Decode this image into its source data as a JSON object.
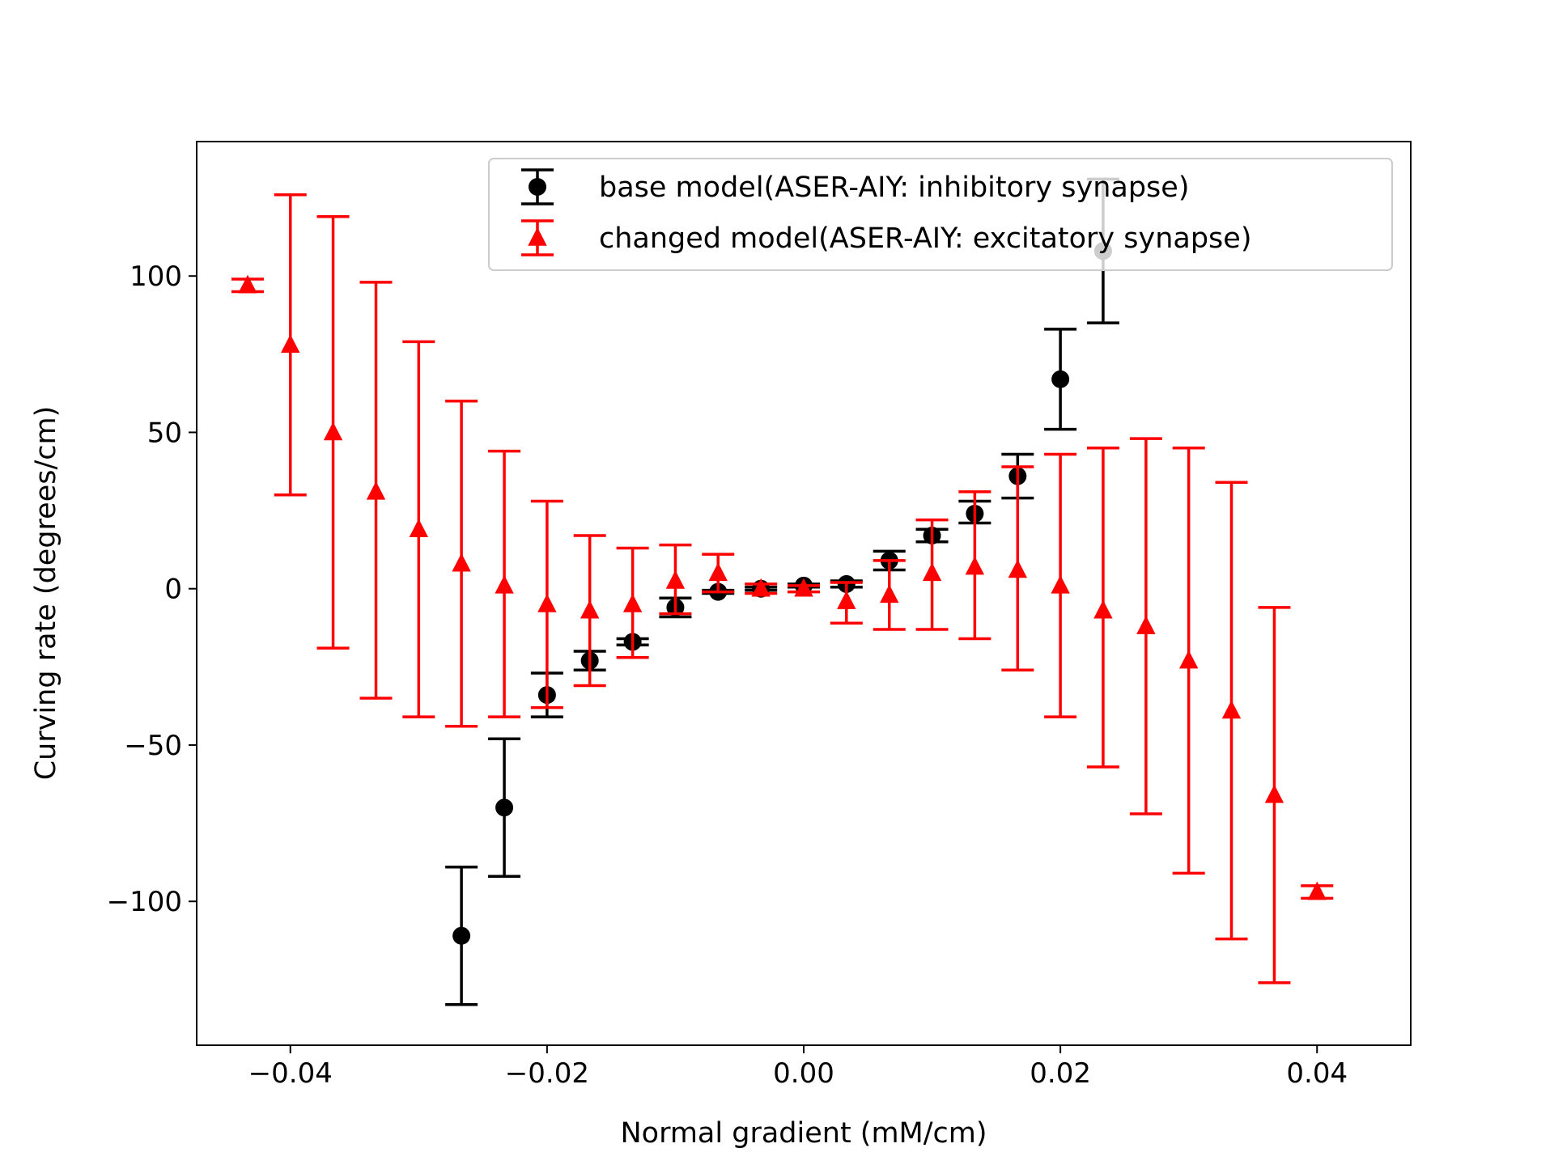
{
  "chart_data": {
    "type": "scatter",
    "errorbars": true,
    "xlabel": "Normal gradient (mM/cm)",
    "ylabel": "Curving rate (degrees/cm)",
    "xlim": [
      -0.0473,
      0.0473
    ],
    "ylim": [
      -146,
      143
    ],
    "x_ticks": [
      -0.04,
      -0.02,
      0.0,
      0.02,
      0.04
    ],
    "x_tick_labels": [
      "−0.04",
      "−0.02",
      "0.00",
      "0.02",
      "0.04"
    ],
    "y_ticks": [
      -100,
      -50,
      0,
      50,
      100
    ],
    "y_tick_labels": [
      "−100",
      "−50",
      "0",
      "50",
      "100"
    ],
    "grid": false,
    "legend_position": "top-right",
    "series": [
      {
        "name": "base model(ASER-AIY: inhibitory synapse)",
        "color": "#000000",
        "marker": "circle",
        "points": [
          {
            "x": -0.02667,
            "y": -111,
            "lo": -133,
            "hi": -89
          },
          {
            "x": -0.02333,
            "y": -70,
            "lo": -92,
            "hi": -48
          },
          {
            "x": -0.02,
            "y": -34,
            "lo": -41,
            "hi": -27
          },
          {
            "x": -0.01667,
            "y": -23,
            "lo": -26,
            "hi": -20
          },
          {
            "x": -0.01333,
            "y": -17,
            "lo": -18,
            "hi": -16
          },
          {
            "x": -0.01,
            "y": -6,
            "lo": -9,
            "hi": -3
          },
          {
            "x": -0.00667,
            "y": -1,
            "lo": -1.5,
            "hi": -0.5
          },
          {
            "x": -0.00333,
            "y": 0,
            "lo": -0.5,
            "hi": 0.5
          },
          {
            "x": 0.0,
            "y": 1,
            "lo": 0.5,
            "hi": 1.5
          },
          {
            "x": 0.00333,
            "y": 1.5,
            "lo": 0.5,
            "hi": 2.5
          },
          {
            "x": 0.00667,
            "y": 9,
            "lo": 6,
            "hi": 12
          },
          {
            "x": 0.01,
            "y": 17,
            "lo": 15,
            "hi": 19
          },
          {
            "x": 0.01333,
            "y": 24,
            "lo": 21,
            "hi": 28
          },
          {
            "x": 0.01667,
            "y": 36,
            "lo": 29,
            "hi": 43
          },
          {
            "x": 0.02,
            "y": 67,
            "lo": 51,
            "hi": 83
          },
          {
            "x": 0.02333,
            "y": 108,
            "lo": 85,
            "hi": 131
          }
        ]
      },
      {
        "name": "changed model(ASER-AIY: excitatory synapse)",
        "color": "#ff0000",
        "marker": "triangle",
        "points": [
          {
            "x": -0.04333,
            "y": 97,
            "lo": 95,
            "hi": 99
          },
          {
            "x": -0.04,
            "y": 78,
            "lo": 30,
            "hi": 126
          },
          {
            "x": -0.03667,
            "y": 50,
            "lo": -19,
            "hi": 119
          },
          {
            "x": -0.03333,
            "y": 31,
            "lo": -35,
            "hi": 98
          },
          {
            "x": -0.03,
            "y": 19,
            "lo": -41,
            "hi": 79
          },
          {
            "x": -0.02667,
            "y": 8,
            "lo": -44,
            "hi": 60
          },
          {
            "x": -0.02333,
            "y": 1,
            "lo": -41,
            "hi": 44
          },
          {
            "x": -0.02,
            "y": -5,
            "lo": -38,
            "hi": 28
          },
          {
            "x": -0.01667,
            "y": -7,
            "lo": -31,
            "hi": 17
          },
          {
            "x": -0.01333,
            "y": -5,
            "lo": -22,
            "hi": 13
          },
          {
            "x": -0.01,
            "y": 2.5,
            "lo": -8,
            "hi": 14
          },
          {
            "x": -0.00667,
            "y": 5,
            "lo": -1,
            "hi": 11
          },
          {
            "x": -0.00333,
            "y": 0,
            "lo": -1.5,
            "hi": 1.5
          },
          {
            "x": 0.0,
            "y": 0,
            "lo": -1,
            "hi": 1
          },
          {
            "x": 0.00333,
            "y": -4,
            "lo": -11,
            "hi": 2
          },
          {
            "x": 0.00667,
            "y": -2,
            "lo": -13,
            "hi": 9
          },
          {
            "x": 0.01,
            "y": 5,
            "lo": -13,
            "hi": 22
          },
          {
            "x": 0.01333,
            "y": 7,
            "lo": -16,
            "hi": 31
          },
          {
            "x": 0.01667,
            "y": 6,
            "lo": -26,
            "hi": 39
          },
          {
            "x": 0.02,
            "y": 1,
            "lo": -41,
            "hi": 43
          },
          {
            "x": 0.02333,
            "y": -7,
            "lo": -57,
            "hi": 45
          },
          {
            "x": 0.02667,
            "y": -12,
            "lo": -72,
            "hi": 48
          },
          {
            "x": 0.03,
            "y": -23,
            "lo": -91,
            "hi": 45
          },
          {
            "x": 0.03333,
            "y": -39,
            "lo": -112,
            "hi": 34
          },
          {
            "x": 0.03667,
            "y": -66,
            "lo": -126,
            "hi": -6
          },
          {
            "x": 0.04,
            "y": -97,
            "lo": -99,
            "hi": -95
          }
        ]
      }
    ]
  }
}
